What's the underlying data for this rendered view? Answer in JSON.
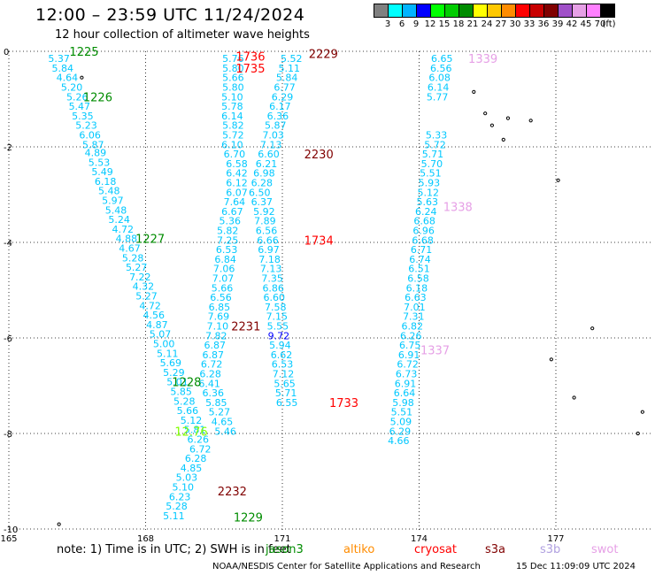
{
  "title": "12:00 – 23:59 UTC 11/24/2024",
  "subtitle": "12 hour collection of altimeter wave heights",
  "legend": {
    "unit": "(ft)",
    "bins": [
      {
        "label": "3",
        "color": "#808080"
      },
      {
        "label": "6",
        "color": "#00ffff"
      },
      {
        "label": "9",
        "color": "#00b4ff"
      },
      {
        "label": "12",
        "color": "#0000ff"
      },
      {
        "label": "15",
        "color": "#00ff00"
      },
      {
        "label": "18",
        "color": "#00cc00"
      },
      {
        "label": "21",
        "color": "#008c00"
      },
      {
        "label": "24",
        "color": "#ffff00"
      },
      {
        "label": "27",
        "color": "#ffc800"
      },
      {
        "label": "30",
        "color": "#ff8c00"
      },
      {
        "label": "33",
        "color": "#ff0000"
      },
      {
        "label": "36",
        "color": "#c80000"
      },
      {
        "label": "39",
        "color": "#800000"
      },
      {
        "label": "42",
        "color": "#a050c8"
      },
      {
        "label": "45",
        "color": "#e6a0e6"
      },
      {
        "label": "70",
        "color": "#ff80ff"
      },
      {
        "label": "",
        "color": "#000000"
      }
    ]
  },
  "axes": {
    "x_ticks": [
      "165",
      "168",
      "171",
      "174",
      "177"
    ],
    "y_ticks": [
      "0",
      "-2",
      "-4",
      "-6",
      "-8",
      "-10"
    ]
  },
  "note": "note:  1) Time is in UTC; 2) SWH is in feet",
  "satellites": [
    {
      "name": "jason3",
      "color": "#008c00"
    },
    {
      "name": "altiko",
      "color": "#ff8c00"
    },
    {
      "name": "cryosat",
      "color": "#ff0000"
    },
    {
      "name": "s3a",
      "color": "#800000"
    },
    {
      "name": "s3b",
      "color": "#b0a0e0"
    },
    {
      "name": "swot",
      "color": "#e6a0e6"
    }
  ],
  "credit": "NOAA/NESDIS Center for Satellite Applications and Research",
  "generated": "15 Dec 11:09:09 UTC 2024",
  "tracks": [
    {
      "points": [
        {
          "lon": 166.1,
          "lat": -0.15,
          "v": "5.37"
        },
        {
          "lon": 166.18,
          "lat": -0.35,
          "v": "5.84"
        },
        {
          "lon": 166.28,
          "lat": -0.55,
          "v": "4.64"
        },
        {
          "lon": 166.38,
          "lat": -0.75,
          "v": "5.20"
        },
        {
          "lon": 166.5,
          "lat": -0.95,
          "v": "5.26"
        },
        {
          "lon": 166.55,
          "lat": -1.15,
          "v": "5.47"
        },
        {
          "lon": 166.62,
          "lat": -1.35,
          "v": "5.35"
        },
        {
          "lon": 166.7,
          "lat": -1.55,
          "v": "5.23"
        },
        {
          "lon": 166.78,
          "lat": -1.75,
          "v": "6.06"
        },
        {
          "lon": 166.85,
          "lat": -1.95,
          "v": "5.87"
        },
        {
          "lon": 166.9,
          "lat": -2.12,
          "v": "4.89"
        },
        {
          "lon": 166.98,
          "lat": -2.32,
          "v": "5.53"
        },
        {
          "lon": 167.05,
          "lat": -2.52,
          "v": "5.49"
        },
        {
          "lon": 167.12,
          "lat": -2.72,
          "v": "6.18"
        },
        {
          "lon": 167.2,
          "lat": -2.92,
          "v": "5.48"
        },
        {
          "lon": 167.28,
          "lat": -3.12,
          "v": "5.97"
        },
        {
          "lon": 167.35,
          "lat": -3.32,
          "v": "5.48"
        },
        {
          "lon": 167.42,
          "lat": -3.52,
          "v": "5.24"
        },
        {
          "lon": 167.5,
          "lat": -3.72,
          "v": "4.72"
        },
        {
          "lon": 167.58,
          "lat": -3.92,
          "v": "4.88"
        },
        {
          "lon": 167.65,
          "lat": -4.12,
          "v": "4.67"
        },
        {
          "lon": 167.72,
          "lat": -4.32,
          "v": "5.28"
        },
        {
          "lon": 167.8,
          "lat": -4.52,
          "v": "5.27"
        },
        {
          "lon": 167.88,
          "lat": -4.72,
          "v": "7.22"
        },
        {
          "lon": 167.95,
          "lat": -4.92,
          "v": "4.32"
        },
        {
          "lon": 168.02,
          "lat": -5.12,
          "v": "5.27"
        },
        {
          "lon": 168.1,
          "lat": -5.32,
          "v": "4.72"
        },
        {
          "lon": 168.18,
          "lat": -5.52,
          "v": "4.56"
        },
        {
          "lon": 168.25,
          "lat": -5.72,
          "v": "4.87"
        },
        {
          "lon": 168.32,
          "lat": -5.92,
          "v": "5.07"
        },
        {
          "lon": 168.4,
          "lat": -6.12,
          "v": "5.00"
        },
        {
          "lon": 168.48,
          "lat": -6.32,
          "v": "5.11"
        },
        {
          "lon": 168.55,
          "lat": -6.52,
          "v": "5.69"
        },
        {
          "lon": 168.62,
          "lat": -6.72,
          "v": "5.29"
        },
        {
          "lon": 168.7,
          "lat": -6.92,
          "v": "5.01"
        },
        {
          "lon": 168.78,
          "lat": -7.12,
          "v": "5.85"
        },
        {
          "lon": 168.85,
          "lat": -7.32,
          "v": "5.28"
        },
        {
          "lon": 168.92,
          "lat": -7.52,
          "v": "5.66"
        },
        {
          "lon": 169.0,
          "lat": -7.72,
          "v": "5.12"
        },
        {
          "lon": 169.08,
          "lat": -7.92,
          "v": "5.81"
        },
        {
          "lon": 169.15,
          "lat": -8.12,
          "v": "6.26"
        },
        {
          "lon": 169.2,
          "lat": -8.32,
          "v": "6.72"
        },
        {
          "lon": 169.1,
          "lat": -8.52,
          "v": "6.28"
        },
        {
          "lon": 169.0,
          "lat": -8.72,
          "v": "4.85"
        },
        {
          "lon": 168.9,
          "lat": -8.92,
          "v": "5.03"
        },
        {
          "lon": 168.82,
          "lat": -9.12,
          "v": "5.10"
        },
        {
          "lon": 168.75,
          "lat": -9.32,
          "v": "6.23"
        },
        {
          "lon": 168.68,
          "lat": -9.52,
          "v": "5.28"
        },
        {
          "lon": 168.62,
          "lat": -9.72,
          "v": "5.11"
        }
      ]
    },
    {
      "points": [
        {
          "lon": 169.92,
          "lat": -0.15,
          "v": "5.76"
        },
        {
          "lon": 169.92,
          "lat": -0.35,
          "v": "5.80"
        },
        {
          "lon": 169.92,
          "lat": -0.55,
          "v": "5.66"
        },
        {
          "lon": 169.92,
          "lat": -0.75,
          "v": "5.80"
        },
        {
          "lon": 169.9,
          "lat": -0.95,
          "v": "5.10"
        },
        {
          "lon": 169.9,
          "lat": -1.15,
          "v": "5.78"
        },
        {
          "lon": 169.9,
          "lat": -1.35,
          "v": "6.14"
        },
        {
          "lon": 169.92,
          "lat": -1.55,
          "v": "5.82"
        },
        {
          "lon": 169.92,
          "lat": -1.75,
          "v": "5.72"
        },
        {
          "lon": 169.9,
          "lat": -1.95,
          "v": "6.10"
        },
        {
          "lon": 169.95,
          "lat": -2.15,
          "v": "6.70"
        },
        {
          "lon": 170.0,
          "lat": -2.35,
          "v": "6.58"
        },
        {
          "lon": 170.0,
          "lat": -2.55,
          "v": "6.42"
        },
        {
          "lon": 170.0,
          "lat": -2.75,
          "v": "6.12"
        },
        {
          "lon": 170.0,
          "lat": -2.95,
          "v": "6.07"
        },
        {
          "lon": 169.95,
          "lat": -3.15,
          "v": "7.64"
        },
        {
          "lon": 169.9,
          "lat": -3.35,
          "v": "6.67"
        },
        {
          "lon": 169.85,
          "lat": -3.55,
          "v": "5.36"
        },
        {
          "lon": 169.8,
          "lat": -3.75,
          "v": "5.82"
        },
        {
          "lon": 169.8,
          "lat": -3.95,
          "v": "7.25"
        },
        {
          "lon": 169.78,
          "lat": -4.15,
          "v": "6.53"
        },
        {
          "lon": 169.75,
          "lat": -4.35,
          "v": "6.84"
        },
        {
          "lon": 169.72,
          "lat": -4.55,
          "v": "7.06"
        },
        {
          "lon": 169.7,
          "lat": -4.75,
          "v": "7.07"
        },
        {
          "lon": 169.68,
          "lat": -4.95,
          "v": "5.66"
        },
        {
          "lon": 169.65,
          "lat": -5.15,
          "v": "6.56"
        },
        {
          "lon": 169.62,
          "lat": -5.35,
          "v": "6.85"
        },
        {
          "lon": 169.6,
          "lat": -5.55,
          "v": "7.69"
        },
        {
          "lon": 169.58,
          "lat": -5.75,
          "v": "7.10"
        },
        {
          "lon": 169.55,
          "lat": -5.95,
          "v": "7.82"
        },
        {
          "lon": 169.52,
          "lat": -6.15,
          "v": "6.87"
        },
        {
          "lon": 169.48,
          "lat": -6.35,
          "v": "6.87"
        },
        {
          "lon": 169.45,
          "lat": -6.55,
          "v": "6.72"
        },
        {
          "lon": 169.42,
          "lat": -6.75,
          "v": "6.28"
        },
        {
          "lon": 169.4,
          "lat": -6.95,
          "v": "6.41"
        },
        {
          "lon": 169.48,
          "lat": -7.15,
          "v": "6.36"
        },
        {
          "lon": 169.55,
          "lat": -7.35,
          "v": "5.85"
        },
        {
          "lon": 169.62,
          "lat": -7.55,
          "v": "5.27"
        },
        {
          "lon": 169.68,
          "lat": -7.75,
          "v": "4.65"
        },
        {
          "lon": 169.75,
          "lat": -7.95,
          "v": "5.46"
        }
      ]
    },
    {
      "points": [
        {
          "lon": 171.2,
          "lat": -0.15,
          "v": "5.52"
        },
        {
          "lon": 171.15,
          "lat": -0.35,
          "v": "5.11"
        },
        {
          "lon": 171.1,
          "lat": -0.55,
          "v": "5.84"
        },
        {
          "lon": 171.05,
          "lat": -0.75,
          "v": "6.77"
        },
        {
          "lon": 171.0,
          "lat": -0.95,
          "v": "6.29"
        },
        {
          "lon": 170.95,
          "lat": -1.15,
          "v": "6.17"
        },
        {
          "lon": 170.9,
          "lat": -1.35,
          "v": "6.36"
        },
        {
          "lon": 170.85,
          "lat": -1.55,
          "v": "5.87"
        },
        {
          "lon": 170.8,
          "lat": -1.75,
          "v": "7.03"
        },
        {
          "lon": 170.75,
          "lat": -1.95,
          "v": "7.13"
        },
        {
          "lon": 170.7,
          "lat": -2.15,
          "v": "6.60"
        },
        {
          "lon": 170.65,
          "lat": -2.35,
          "v": "6.21"
        },
        {
          "lon": 170.6,
          "lat": -2.55,
          "v": "6.98"
        },
        {
          "lon": 170.55,
          "lat": -2.75,
          "v": "6.28"
        },
        {
          "lon": 170.5,
          "lat": -2.95,
          "v": "6.50"
        },
        {
          "lon": 170.55,
          "lat": -3.15,
          "v": "6.37"
        },
        {
          "lon": 170.6,
          "lat": -3.35,
          "v": "5.92"
        },
        {
          "lon": 170.62,
          "lat": -3.55,
          "v": "7.89"
        },
        {
          "lon": 170.65,
          "lat": -3.75,
          "v": "6.56"
        },
        {
          "lon": 170.68,
          "lat": -3.95,
          "v": "6.66"
        },
        {
          "lon": 170.7,
          "lat": -4.15,
          "v": "6.97"
        },
        {
          "lon": 170.72,
          "lat": -4.35,
          "v": "7.18"
        },
        {
          "lon": 170.75,
          "lat": -4.55,
          "v": "7.13"
        },
        {
          "lon": 170.78,
          "lat": -4.75,
          "v": "7.35"
        },
        {
          "lon": 170.8,
          "lat": -4.95,
          "v": "6.86"
        },
        {
          "lon": 170.82,
          "lat": -5.15,
          "v": "6.60"
        },
        {
          "lon": 170.85,
          "lat": -5.35,
          "v": "7.58"
        },
        {
          "lon": 170.88,
          "lat": -5.55,
          "v": "7.15"
        },
        {
          "lon": 170.9,
          "lat": -5.75,
          "v": "5.55"
        },
        {
          "lon": 170.92,
          "lat": -5.95,
          "v": "9.72"
        },
        {
          "lon": 170.95,
          "lat": -6.15,
          "v": "5.94"
        },
        {
          "lon": 170.98,
          "lat": -6.35,
          "v": "6.62"
        },
        {
          "lon": 171.0,
          "lat": -6.55,
          "v": "6.53"
        },
        {
          "lon": 171.02,
          "lat": -6.75,
          "v": "7.12"
        },
        {
          "lon": 171.05,
          "lat": -6.95,
          "v": "5.65"
        },
        {
          "lon": 171.08,
          "lat": -7.15,
          "v": "5.71"
        },
        {
          "lon": 171.1,
          "lat": -7.35,
          "v": "6.55"
        }
      ]
    },
    {
      "points": [
        {
          "lon": 174.5,
          "lat": -0.15,
          "v": "6.65"
        },
        {
          "lon": 174.48,
          "lat": -0.35,
          "v": "6.56"
        },
        {
          "lon": 174.45,
          "lat": -0.55,
          "v": "6.08"
        },
        {
          "lon": 174.42,
          "lat": -0.75,
          "v": "6.14"
        },
        {
          "lon": 174.4,
          "lat": -0.95,
          "v": "5.77"
        },
        {
          "lon": 174.38,
          "lat": -1.75,
          "v": "5.33"
        },
        {
          "lon": 174.35,
          "lat": -1.95,
          "v": "5.72"
        },
        {
          "lon": 174.3,
          "lat": -2.15,
          "v": "5.71"
        },
        {
          "lon": 174.28,
          "lat": -2.35,
          "v": "5.70"
        },
        {
          "lon": 174.25,
          "lat": -2.55,
          "v": "5.51"
        },
        {
          "lon": 174.22,
          "lat": -2.75,
          "v": "5.93"
        },
        {
          "lon": 174.2,
          "lat": -2.95,
          "v": "5.12"
        },
        {
          "lon": 174.18,
          "lat": -3.15,
          "v": "5.63"
        },
        {
          "lon": 174.15,
          "lat": -3.35,
          "v": "6.24"
        },
        {
          "lon": 174.12,
          "lat": -3.55,
          "v": "6.68"
        },
        {
          "lon": 174.1,
          "lat": -3.75,
          "v": "6.96"
        },
        {
          "lon": 174.08,
          "lat": -3.95,
          "v": "6.68"
        },
        {
          "lon": 174.05,
          "lat": -4.15,
          "v": "6.71"
        },
        {
          "lon": 174.02,
          "lat": -4.35,
          "v": "6.74"
        },
        {
          "lon": 174.0,
          "lat": -4.55,
          "v": "6.51"
        },
        {
          "lon": 173.98,
          "lat": -4.75,
          "v": "6.58"
        },
        {
          "lon": 173.95,
          "lat": -4.95,
          "v": "6.18"
        },
        {
          "lon": 173.92,
          "lat": -5.15,
          "v": "6.63"
        },
        {
          "lon": 173.9,
          "lat": -5.35,
          "v": "7.01"
        },
        {
          "lon": 173.88,
          "lat": -5.55,
          "v": "7.31"
        },
        {
          "lon": 173.85,
          "lat": -5.75,
          "v": "6.82"
        },
        {
          "lon": 173.82,
          "lat": -5.95,
          "v": "6.26"
        },
        {
          "lon": 173.8,
          "lat": -6.15,
          "v": "6.75"
        },
        {
          "lon": 173.78,
          "lat": -6.35,
          "v": "6.91"
        },
        {
          "lon": 173.75,
          "lat": -6.55,
          "v": "6.72"
        },
        {
          "lon": 173.72,
          "lat": -6.75,
          "v": "6.73"
        },
        {
          "lon": 173.7,
          "lat": -6.95,
          "v": "6.91"
        },
        {
          "lon": 173.68,
          "lat": -7.15,
          "v": "6.64"
        },
        {
          "lon": 173.65,
          "lat": -7.35,
          "v": "5.98"
        },
        {
          "lon": 173.62,
          "lat": -7.55,
          "v": "5.51"
        },
        {
          "lon": 173.6,
          "lat": -7.75,
          "v": "5.09"
        },
        {
          "lon": 173.58,
          "lat": -7.95,
          "v": "6.29"
        },
        {
          "lon": 173.55,
          "lat": -8.15,
          "v": "4.66"
        }
      ]
    }
  ],
  "time_labels": [
    {
      "lon": 166.65,
      "lat": 0.0,
      "text": "1225",
      "color": "#008c00"
    },
    {
      "lon": 166.95,
      "lat": -0.95,
      "text": "1226",
      "color": "#008c00"
    },
    {
      "lon": 168.1,
      "lat": -3.92,
      "text": "1227",
      "color": "#008c00"
    },
    {
      "lon": 168.9,
      "lat": -6.92,
      "text": "1228",
      "color": "#008c00"
    },
    {
      "lon": 170.25,
      "lat": -9.75,
      "text": "1229",
      "color": "#008c00"
    },
    {
      "lon": 170.3,
      "lat": -0.1,
      "text": "1736",
      "color": "#ff0000"
    },
    {
      "lon": 170.3,
      "lat": -0.35,
      "text": "1735",
      "color": "#ff0000"
    },
    {
      "lon": 171.8,
      "lat": -3.95,
      "text": "1734",
      "color": "#ff0000"
    },
    {
      "lon": 172.35,
      "lat": -7.35,
      "text": "1733",
      "color": "#ff0000"
    },
    {
      "lon": 171.9,
      "lat": -0.05,
      "text": "2229",
      "color": "#800000"
    },
    {
      "lon": 171.8,
      "lat": -2.15,
      "text": "2230",
      "color": "#800000"
    },
    {
      "lon": 170.2,
      "lat": -5.75,
      "text": "2231",
      "color": "#800000"
    },
    {
      "lon": 169.9,
      "lat": -9.2,
      "text": "2232",
      "color": "#800000"
    },
    {
      "lon": 175.4,
      "lat": -0.15,
      "text": "1339",
      "color": "#e6a0e6"
    },
    {
      "lon": 174.85,
      "lat": -3.25,
      "text": "1338",
      "color": "#e6a0e6"
    },
    {
      "lon": 174.35,
      "lat": -6.25,
      "text": "1337",
      "color": "#e6a0e6"
    },
    {
      "lon": 169.0,
      "lat": -7.95,
      "text": "12.76",
      "color": "#80ff00"
    }
  ],
  "islands": [
    {
      "lon": 166.6,
      "lat": -0.55
    },
    {
      "lon": 175.2,
      "lat": -0.85
    },
    {
      "lon": 175.45,
      "lat": -1.3
    },
    {
      "lon": 175.6,
      "lat": -1.55
    },
    {
      "lon": 175.95,
      "lat": -1.4
    },
    {
      "lon": 176.45,
      "lat": -1.45
    },
    {
      "lon": 175.85,
      "lat": -1.85
    },
    {
      "lon": 177.05,
      "lat": -2.7
    },
    {
      "lon": 177.8,
      "lat": -5.8
    },
    {
      "lon": 176.9,
      "lat": -6.45
    },
    {
      "lon": 178.9,
      "lat": -7.55
    },
    {
      "lon": 178.8,
      "lat": -8.0
    },
    {
      "lon": 177.4,
      "lat": -7.25
    },
    {
      "lon": 166.1,
      "lat": -9.9
    }
  ]
}
